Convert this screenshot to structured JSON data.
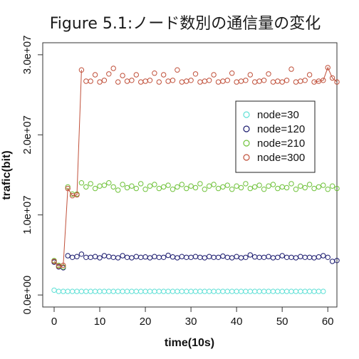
{
  "chart_data": {
    "type": "scatter",
    "title": "Figure 5.1:ノード数別の通信量の変化",
    "xlabel": "time(10s)",
    "ylabel": "trafic(bit)",
    "xlim": [
      -2.5,
      62
    ],
    "ylim": [
      -1500000,
      31500000
    ],
    "xticks": [
      0,
      10,
      20,
      30,
      40,
      50,
      60
    ],
    "xtick_labels": [
      "0",
      "10",
      "20",
      "30",
      "40",
      "50",
      "60"
    ],
    "yticks": [
      0,
      10000000,
      20000000,
      30000000
    ],
    "ytick_labels": [
      "0.0e+00",
      "1.0e+07",
      "2.0e+07",
      "3.0e+07"
    ],
    "grid": false,
    "legend_position": "right",
    "x": [
      0,
      1,
      2,
      3,
      4,
      5,
      6,
      7,
      8,
      9,
      10,
      11,
      12,
      13,
      14,
      15,
      16,
      17,
      18,
      19,
      20,
      21,
      22,
      23,
      24,
      25,
      26,
      27,
      28,
      29,
      30,
      31,
      32,
      33,
      34,
      35,
      36,
      37,
      38,
      39,
      40,
      41,
      42,
      43,
      44,
      45,
      46,
      47,
      48,
      49,
      50,
      51,
      52,
      53,
      54,
      55,
      56,
      57,
      58,
      59,
      60,
      61,
      62
    ],
    "series": [
      {
        "name": "node=30",
        "color": "#5fe0d6",
        "values": [
          600000,
          450000,
          450000,
          450000,
          450000,
          450000,
          450000,
          450000,
          450000,
          450000,
          450000,
          450000,
          450000,
          450000,
          450000,
          450000,
          450000,
          450000,
          450000,
          450000,
          450000,
          450000,
          450000,
          450000,
          450000,
          450000,
          450000,
          450000,
          450000,
          450000,
          450000,
          450000,
          450000,
          450000,
          450000,
          450000,
          450000,
          450000,
          450000,
          450000,
          450000,
          450000,
          450000,
          450000,
          450000,
          450000,
          450000,
          450000,
          450000,
          450000,
          450000,
          450000,
          450000,
          450000,
          450000,
          450000,
          450000,
          450000,
          450000,
          450000,
          null,
          null,
          null
        ]
      },
      {
        "name": "node=120",
        "color": "#1a1a6e",
        "values": [
          4100000,
          3500000,
          3400000,
          4900000,
          4700000,
          4800000,
          5100000,
          4700000,
          4700000,
          4800000,
          4650000,
          4900000,
          4800000,
          4700000,
          4650000,
          4900000,
          4700000,
          4650000,
          4800000,
          4700000,
          4750000,
          4650000,
          4800000,
          4700000,
          4700000,
          4950000,
          4750000,
          4650000,
          4800000,
          4700000,
          4700000,
          4800000,
          4700000,
          4650000,
          4800000,
          4700000,
          4700000,
          4850000,
          4700000,
          4650000,
          4800000,
          4650000,
          4700000,
          5000000,
          4750000,
          4700000,
          4700000,
          4800000,
          4650000,
          4700000,
          4900000,
          4700000,
          4700000,
          4650000,
          4800000,
          4700000,
          4700000,
          4650000,
          4750000,
          4900000,
          4700000,
          4200000,
          4300000
        ]
      },
      {
        "name": "node=210",
        "color": "#6fc23a",
        "values": [
          4300000,
          3700000,
          3500000,
          13500000,
          12600000,
          12600000,
          14000000,
          13500000,
          13900000,
          13300000,
          13600000,
          13700000,
          14000000,
          13500000,
          13100000,
          13800000,
          13400000,
          13600000,
          13300000,
          13900000,
          13200000,
          13600000,
          13800000,
          13300000,
          13500000,
          13700000,
          13200000,
          13500000,
          13800000,
          13300000,
          13600000,
          13400000,
          13900000,
          13200000,
          13600000,
          13800000,
          13300000,
          13500000,
          13700000,
          13200000,
          13600000,
          13400000,
          13900000,
          13300000,
          13500000,
          13700000,
          13200000,
          13600000,
          13800000,
          13300000,
          13500000,
          13400000,
          13900000,
          13200000,
          13600000,
          13400000,
          13800000,
          13300000,
          13500000,
          13700000,
          13200000,
          13600000,
          13300000
        ]
      },
      {
        "name": "node=300",
        "color": "#c0503a",
        "values": [
          4200000,
          3600000,
          3700000,
          13300000,
          12400000,
          12500000,
          28100000,
          26700000,
          26700000,
          27500000,
          26600000,
          26800000,
          27600000,
          28300000,
          26600000,
          27400000,
          26700000,
          26800000,
          27500000,
          26600000,
          26700000,
          26800000,
          27700000,
          26600000,
          27500000,
          26700000,
          26800000,
          28100000,
          26600000,
          26700000,
          26800000,
          27600000,
          26600000,
          26700000,
          26800000,
          27500000,
          26600000,
          26700000,
          26800000,
          27700000,
          26600000,
          26700000,
          26800000,
          27500000,
          26600000,
          26700000,
          26800000,
          27600000,
          26600000,
          26700000,
          26600000,
          26800000,
          28200000,
          26600000,
          26700000,
          26800000,
          27500000,
          26600000,
          26700000,
          26800000,
          28400000,
          27100000,
          26600000
        ]
      }
    ]
  }
}
